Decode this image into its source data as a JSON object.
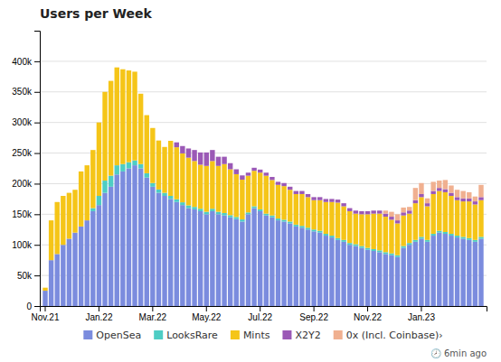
{
  "chart_data": {
    "type": "bar",
    "title": "Users per Week",
    "stacked": true,
    "grid": true,
    "legend": "bottom",
    "annotations": [
      "🕗 6min ago"
    ],
    "categories": [
      "Nov.21",
      null,
      null,
      null,
      null,
      null,
      null,
      null,
      null,
      "Jan.22",
      null,
      null,
      null,
      null,
      null,
      null,
      null,
      null,
      "Mar.22",
      null,
      null,
      null,
      null,
      null,
      null,
      null,
      null,
      "May.22",
      null,
      null,
      null,
      null,
      null,
      null,
      null,
      null,
      "Jul.22",
      null,
      null,
      null,
      null,
      null,
      null,
      null,
      null,
      "Sep.22",
      null,
      null,
      null,
      null,
      null,
      null,
      null,
      null,
      "Nov.22",
      null,
      null,
      null,
      null,
      null,
      null,
      null,
      null,
      "Jan.23",
      null,
      null,
      null,
      null,
      null,
      null,
      null,
      null,
      null,
      null
    ],
    "ylim": [
      0,
      450000
    ],
    "yticks": [
      0,
      {
        "value": 50000,
        "label": "50k"
      },
      {
        "value": 100000,
        "label": "100k"
      },
      {
        "value": 150000,
        "label": "150k"
      },
      {
        "value": 200000,
        "label": "200k"
      },
      {
        "value": 250000,
        "label": "250k"
      },
      {
        "value": 300000,
        "label": "300k"
      },
      {
        "value": 350000,
        "label": "350k"
      },
      {
        "value": 400000,
        "label": "400k"
      }
    ],
    "series": [
      {
        "name": "OpenSea",
        "color": "#7b8cde",
        "values": [
          25000,
          75000,
          85000,
          100000,
          110000,
          120000,
          130000,
          140000,
          155000,
          165000,
          185000,
          195000,
          215000,
          220000,
          225000,
          230000,
          225000,
          210000,
          195000,
          185000,
          180000,
          175000,
          170000,
          165000,
          160000,
          158000,
          155000,
          150000,
          155000,
          150000,
          148000,
          145000,
          142000,
          138000,
          150000,
          160000,
          155000,
          148000,
          145000,
          140000,
          138000,
          135000,
          130000,
          128000,
          125000,
          122000,
          120000,
          115000,
          112000,
          108000,
          105000,
          100000,
          98000,
          95000,
          92000,
          90000,
          88000,
          85000,
          83000,
          80000,
          95000,
          100000,
          105000,
          110000,
          105000,
          115000,
          120000,
          118000,
          115000,
          112000,
          110000,
          108000,
          105000,
          110000
        ]
      },
      {
        "name": "LooksRare",
        "color": "#4ecdc4",
        "values": [
          0,
          0,
          0,
          0,
          0,
          0,
          0,
          0,
          5000,
          15000,
          20000,
          18000,
          15000,
          12000,
          10000,
          8000,
          7000,
          7000,
          6000,
          5500,
          5000,
          5000,
          4500,
          4500,
          4500,
          4000,
          4000,
          4000,
          4000,
          4000,
          4000,
          3500,
          3500,
          3500,
          3000,
          3000,
          3000,
          3000,
          3000,
          3000,
          3000,
          3000,
          3000,
          3000,
          3000,
          3000,
          3000,
          3000,
          3000,
          3000,
          3000,
          3000,
          3000,
          3000,
          3000,
          3000,
          3000,
          3000,
          3000,
          3000,
          3000,
          3000,
          3000,
          3000,
          3000,
          3000,
          3000,
          3000,
          3000,
          3000,
          3000,
          3000,
          3000,
          3000
        ]
      },
      {
        "name": "Mints",
        "color": "#f5c518",
        "values": [
          5000,
          65000,
          85000,
          80000,
          75000,
          70000,
          90000,
          90000,
          95000,
          120000,
          145000,
          155000,
          160000,
          155000,
          150000,
          145000,
          115000,
          95000,
          90000,
          80000,
          75000,
          90000,
          85000,
          80000,
          78000,
          75000,
          72000,
          75000,
          78000,
          75000,
          80000,
          75000,
          70000,
          65000,
          60000,
          58000,
          60000,
          62000,
          58000,
          55000,
          55000,
          52000,
          50000,
          52000,
          50000,
          48000,
          50000,
          52000,
          55000,
          58000,
          55000,
          52000,
          50000,
          52000,
          55000,
          58000,
          60000,
          58000,
          55000,
          52000,
          50000,
          48000,
          60000,
          65000,
          55000,
          65000,
          65000,
          65000,
          62000,
          58000,
          58000,
          60000,
          58000,
          60000
        ]
      },
      {
        "name": "X2Y2",
        "color": "#9b59b6",
        "values": [
          0,
          0,
          0,
          0,
          0,
          0,
          0,
          0,
          0,
          0,
          0,
          0,
          0,
          0,
          0,
          0,
          0,
          0,
          0,
          0,
          0,
          0,
          8000,
          12000,
          15000,
          18000,
          20000,
          22000,
          18000,
          15000,
          12000,
          10000,
          8000,
          7000,
          5000,
          5000,
          5000,
          5000,
          5000,
          5000,
          5000,
          5000,
          5000,
          5000,
          5000,
          5000,
          5000,
          5000,
          5000,
          5000,
          5000,
          5000,
          5000,
          5000,
          5000,
          5000,
          5000,
          5000,
          5000,
          5000,
          5000,
          5000,
          5000,
          5000,
          5000,
          5000,
          5000,
          5000,
          5000,
          5000,
          5000,
          5000,
          5000,
          5000
        ]
      },
      {
        "name": "0x (Incl. Coinbase)›",
        "color": "#f0b090",
        "values": [
          0,
          0,
          0,
          0,
          0,
          0,
          0,
          0,
          0,
          0,
          0,
          0,
          0,
          0,
          0,
          0,
          0,
          0,
          0,
          0,
          0,
          0,
          0,
          0,
          0,
          0,
          0,
          0,
          0,
          0,
          0,
          0,
          0,
          0,
          0,
          0,
          0,
          0,
          0,
          0,
          0,
          0,
          0,
          0,
          0,
          0,
          0,
          0,
          0,
          0,
          0,
          0,
          0,
          0,
          0,
          0,
          0,
          5000,
          8000,
          10000,
          8000,
          6000,
          20000,
          18000,
          8000,
          15000,
          12000,
          15000,
          12000,
          12000,
          12000,
          10000,
          8000,
          20000
        ]
      }
    ]
  }
}
